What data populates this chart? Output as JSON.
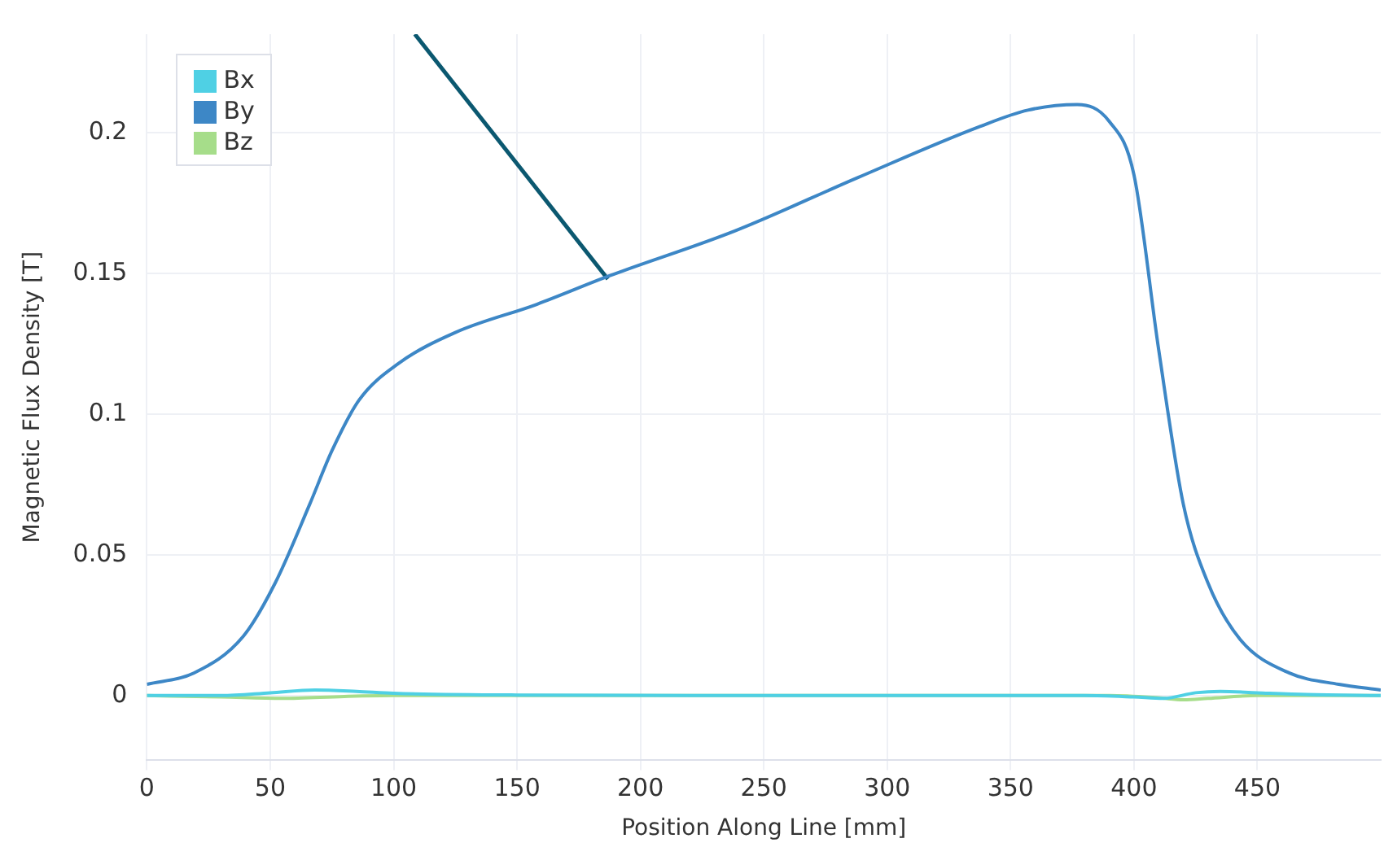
{
  "chart_data": {
    "type": "line",
    "xlabel": "Position Along Line [mm]",
    "ylabel": "Magnetic Flux Density [T]",
    "xlim": [
      0,
      500
    ],
    "xticks": [
      0,
      50,
      100,
      150,
      200,
      250,
      300,
      350,
      400,
      450
    ],
    "ylim": [
      -0.023,
      0.235
    ],
    "yticks": [
      0,
      0.05,
      0.1,
      0.15,
      0.2
    ],
    "grid": true,
    "legend": "top left",
    "marker": "none",
    "line_style": "solid",
    "series": [
      {
        "name": "Bx",
        "color": "#4fd0e4",
        "x": [
          0,
          30,
          50,
          68,
          85,
          100,
          150,
          300,
          380,
          400,
          412,
          425,
          435,
          450,
          470,
          500
        ],
        "values": [
          0,
          0,
          0.001,
          0.002,
          0.0015,
          0.0008,
          0.0002,
          0,
          0,
          -0.0005,
          -0.001,
          0.001,
          0.0015,
          0.001,
          0.0004,
          0
        ]
      },
      {
        "name": "By",
        "color": "#3d87c6",
        "x": [
          0,
          19,
          39,
          52,
          66,
          75,
          86,
          102,
          125,
          158,
          187,
          238,
          288,
          337,
          357,
          377,
          390,
          400,
          410,
          420,
          430,
          443,
          463,
          483,
          500
        ],
        "values": [
          0.004,
          0.008,
          0.021,
          0.04,
          0.068,
          0.087,
          0.105,
          0.118,
          0.129,
          0.139,
          0.149,
          0.165,
          0.184,
          0.202,
          0.208,
          0.21,
          0.204,
          0.185,
          0.123,
          0.068,
          0.04,
          0.02,
          0.008,
          0.004,
          0.002
        ]
      },
      {
        "color": "#0b5870",
        "x": [
          108.6,
          186.8
        ],
        "values": [
          0.235,
          0.148
        ]
      },
      {
        "name": "Bz",
        "color": "#a6dd8a",
        "x": [
          0,
          30,
          55,
          80,
          100,
          150,
          300,
          390,
          410,
          420,
          430,
          450,
          500
        ],
        "values": [
          0,
          -0.0005,
          -0.001,
          -0.0003,
          0,
          0,
          0,
          0,
          -0.0008,
          -0.0015,
          -0.001,
          0,
          0
        ]
      }
    ]
  }
}
